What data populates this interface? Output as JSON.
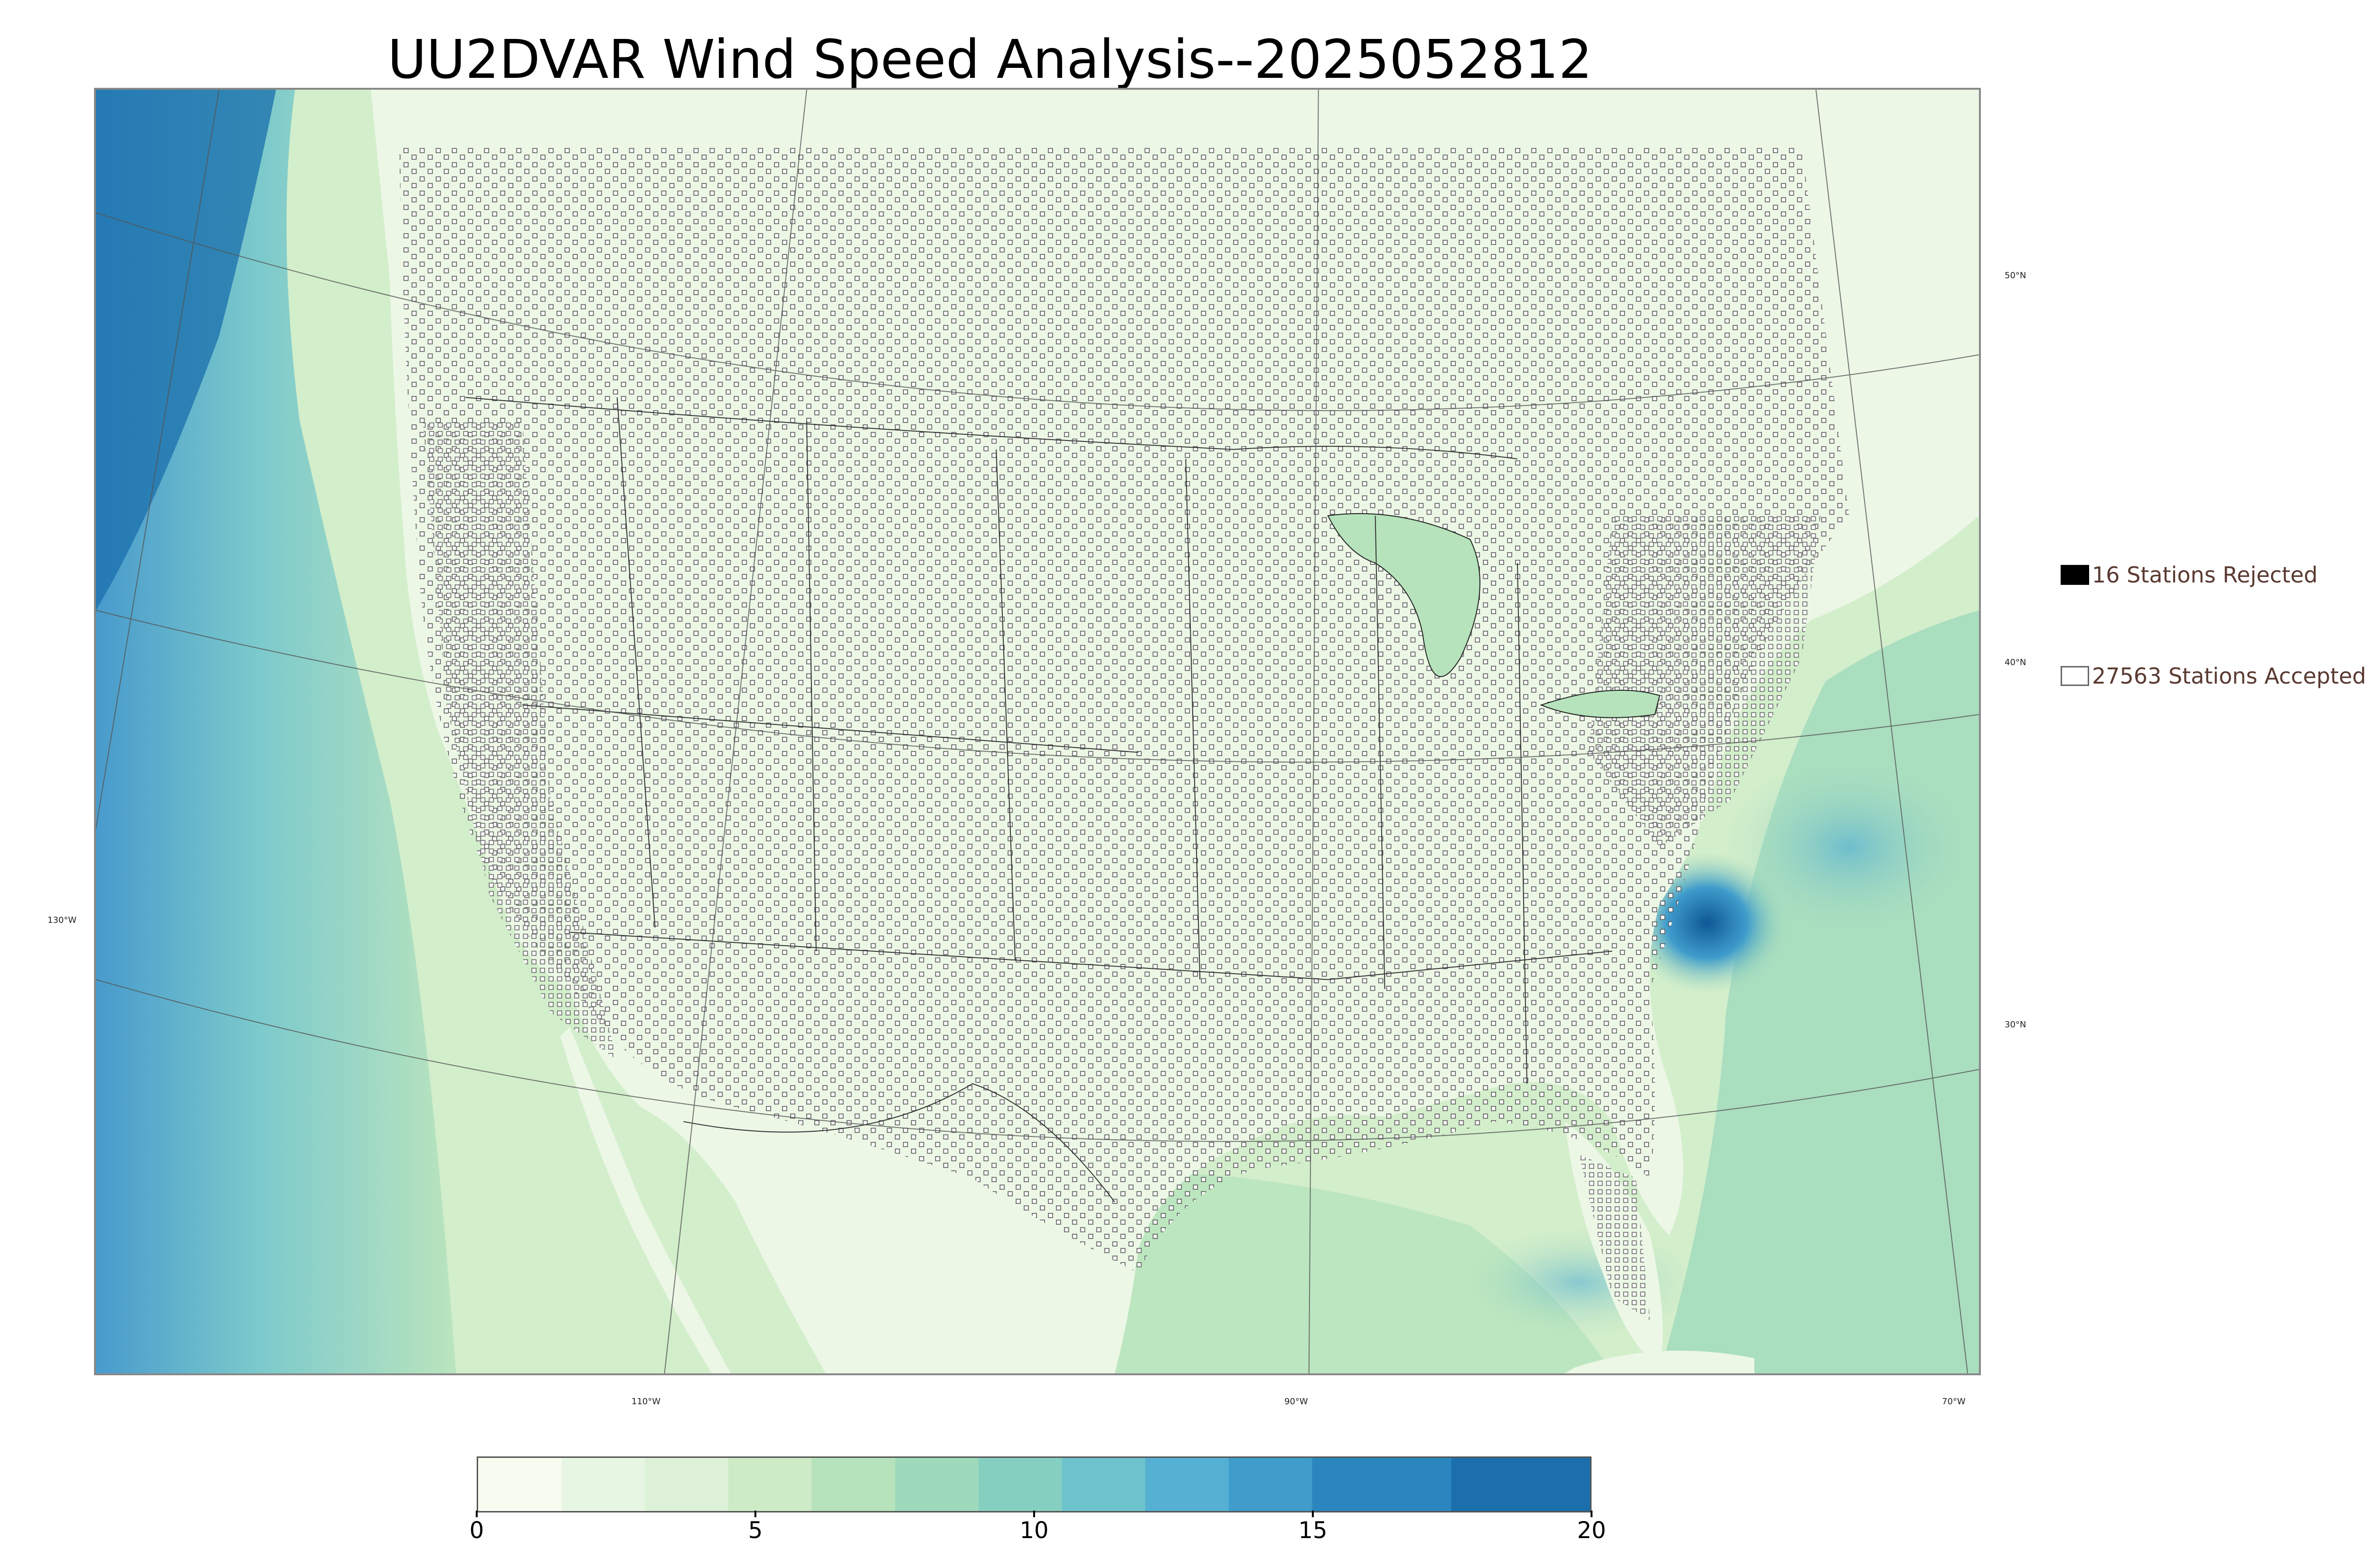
{
  "title": "UU2DVAR Wind Speed Analysis--2025052812",
  "longitude_labels": [
    "110°W",
    "90°W",
    "70°W"
  ],
  "latitude_labels": [
    "50°N",
    "40°N",
    "30°N"
  ],
  "west_label": "130°W",
  "legend": {
    "rejected": {
      "label": "16 Stations Rejected",
      "count": 16,
      "color": "#000000"
    },
    "accepted": {
      "label": "27563 Stations Accepted",
      "count": 27563,
      "color": "#ffffff"
    }
  },
  "colorbar": {
    "min": 0,
    "max": 20,
    "ticks": [
      "0",
      "5",
      "10",
      "15",
      "20"
    ],
    "colors": [
      "#f7fcf0",
      "#e7f6e3",
      "#dcf1d7",
      "#cdebc6",
      "#b6e3bb",
      "#9fd9bb",
      "#85cfc1",
      "#6cc3cc",
      "#55b0d3",
      "#3f9ccb",
      "#2b86bf",
      "#1a6fac",
      "#0e5896"
    ],
    "boundaries": [
      0,
      1.5,
      3,
      4.5,
      6,
      7.5,
      9,
      10.5,
      12,
      13.5,
      15,
      17.5,
      20
    ]
  },
  "colors": {
    "land_tint": "#eaf6e4",
    "ocean_strong": "#2f8ccc",
    "station_outline": "#555555"
  }
}
